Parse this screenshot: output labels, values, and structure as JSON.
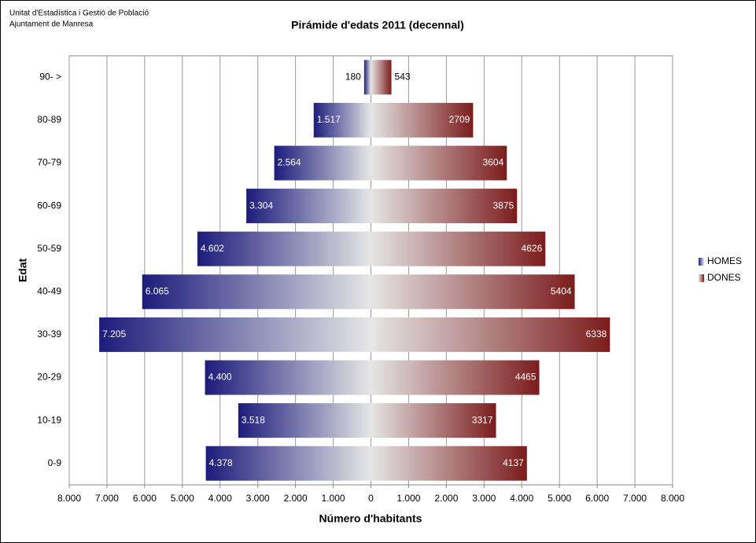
{
  "chart_data": {
    "type": "population-pyramid",
    "title": "Pirámide d'edats 2011 (decennal)",
    "source_lines": [
      "Unitat d'Estadística i Gestió de Població",
      "Ajuntament de Manresa"
    ],
    "x_label": "Número d'habitants",
    "y_label": "Edat",
    "categories": [
      "90- >",
      "80-89",
      "70-79",
      "60-69",
      "50-59",
      "40-49",
      "30-39",
      "20-29",
      "10-19",
      "0-9"
    ],
    "series": [
      {
        "name": "HOMES",
        "color": "#1c1c7c",
        "side": "left",
        "values": [
          180,
          1517,
          2564,
          3304,
          4602,
          6065,
          7205,
          4400,
          3518,
          4378
        ],
        "value_labels": [
          "180",
          "1.517",
          "2.564",
          "3.304",
          "4.602",
          "6.065",
          "7.205",
          "4.400",
          "3.518",
          "4.378"
        ]
      },
      {
        "name": "DONES",
        "color": "#7c1c1c",
        "side": "right",
        "values": [
          543,
          2709,
          3604,
          3875,
          4626,
          5404,
          6338,
          4465,
          3317,
          4137
        ]
      }
    ],
    "xlim": [
      -8000,
      8000
    ],
    "xticks": [
      {
        "value": -8000,
        "label": "8.000"
      },
      {
        "value": -7000,
        "label": "7.000"
      },
      {
        "value": -6000,
        "label": "6.000"
      },
      {
        "value": -5000,
        "label": "5.000"
      },
      {
        "value": -4000,
        "label": "4.000"
      },
      {
        "value": -3000,
        "label": "3.000"
      },
      {
        "value": -2000,
        "label": "2.000"
      },
      {
        "value": -1000,
        "label": "1.000"
      },
      0,
      {
        "value": 1000,
        "label": "1.000"
      },
      {
        "value": 2000,
        "label": "2.000"
      },
      {
        "value": 3000,
        "label": "3.000"
      },
      {
        "value": 4000,
        "label": "4.000"
      },
      {
        "value": 5000,
        "label": "5.000"
      },
      {
        "value": 6000,
        "label": "6.000"
      },
      {
        "value": 7000,
        "label": "7.000"
      },
      {
        "value": 8000,
        "label": "8.000"
      }
    ],
    "grid": true,
    "legend": "right"
  }
}
